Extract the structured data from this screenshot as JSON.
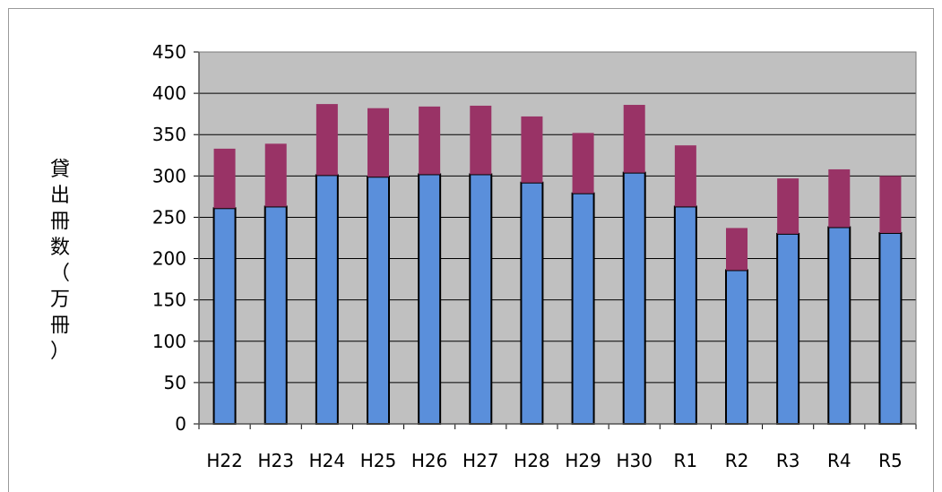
{
  "chart_data": {
    "type": "bar",
    "stacked": true,
    "categories": [
      "H22",
      "H23",
      "H24",
      "H25",
      "H26",
      "H27",
      "H28",
      "H29",
      "H30",
      "R1",
      "R2",
      "R3",
      "R4",
      "R5"
    ],
    "series": [
      {
        "values": [
          261,
          263,
          301,
          299,
          302,
          302,
          292,
          279,
          304,
          263,
          186,
          230,
          238,
          231
        ],
        "color": "#5a8fdb"
      },
      {
        "values": [
          72,
          76,
          86,
          83,
          82,
          83,
          80,
          73,
          82,
          74,
          51,
          67,
          70,
          69
        ],
        "color": "#993366"
      }
    ],
    "ylabel": "貸出冊数（万冊）",
    "ylim": [
      0,
      450
    ],
    "yticks": [
      0,
      50,
      100,
      150,
      200,
      250,
      300,
      350,
      400,
      450
    ],
    "grid": true,
    "plot_background": "#c0c0c0"
  }
}
